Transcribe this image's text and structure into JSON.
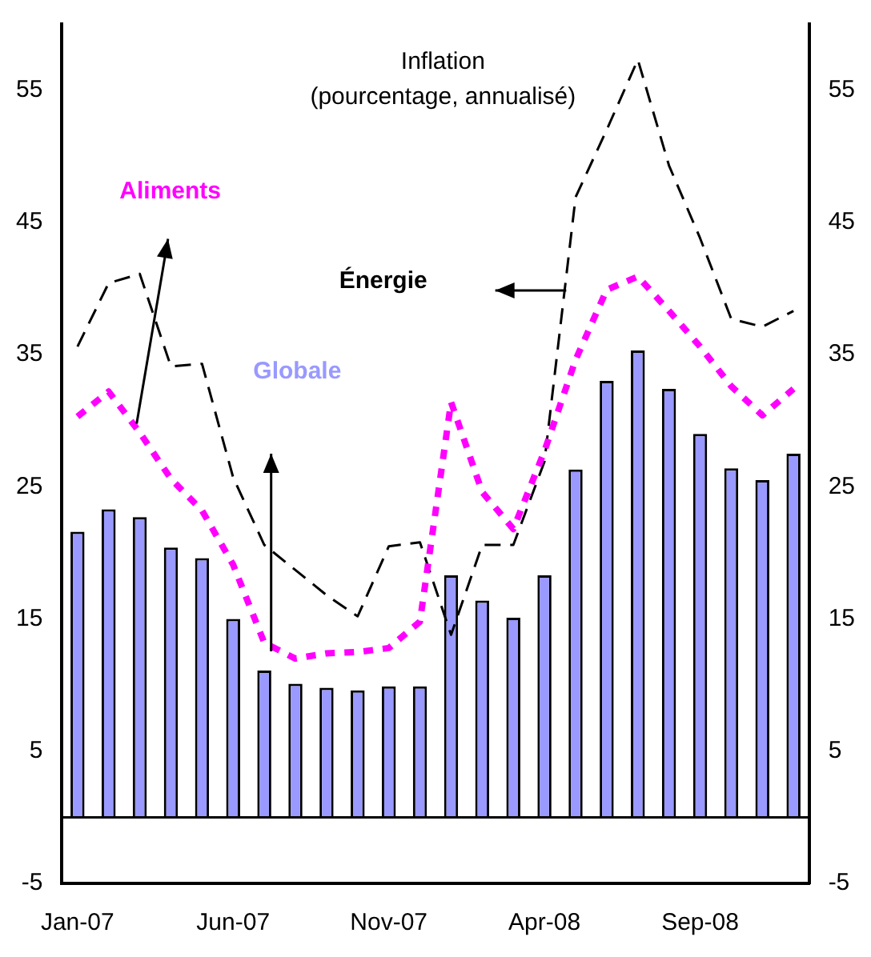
{
  "chart_data": {
    "type": "bar",
    "title": "Inflation",
    "subtitle": "(pourcentage, annualisé)",
    "categories": [
      "Jan-07",
      null,
      null,
      null,
      null,
      "Jun-07",
      null,
      null,
      null,
      null,
      "Nov-07",
      null,
      null,
      null,
      null,
      "Apr-08",
      null,
      null,
      null,
      null,
      "Sep-08",
      null,
      null,
      null
    ],
    "series": [
      {
        "name": "Globale",
        "color": "#9999ff",
        "values": [
          21.6,
          23.3,
          22.7,
          20.4,
          19.6,
          15.0,
          11.1,
          10.1,
          9.8,
          9.6,
          9.9,
          9.9,
          18.3,
          16.4,
          15.1,
          18.3,
          26.3,
          33.0,
          35.3,
          32.4,
          29.0,
          26.4,
          25.5,
          27.5
        ]
      },
      {
        "name": "Aliments",
        "type": "line",
        "color": "#ff00ff",
        "line_style": "dotted",
        "values": [
          30.3,
          32.2,
          29.1,
          25.6,
          23.2,
          19.1,
          13.2,
          12.0,
          12.4,
          12.5,
          12.8,
          14.8,
          31.4,
          24.6,
          21.8,
          27.7,
          34.6,
          39.9,
          40.9,
          38.3,
          35.6,
          32.6,
          30.4,
          32.4
        ]
      },
      {
        "name": "Énergie",
        "type": "line",
        "color": "#000000",
        "line_style": "dashed",
        "values": [
          35.6,
          40.4,
          41.1,
          34.1,
          34.3,
          25.7,
          20.6,
          18.7,
          16.8,
          15.2,
          20.5,
          20.8,
          13.8,
          20.6,
          20.6,
          26.9,
          46.9,
          52.0,
          57.3,
          49.3,
          43.8,
          37.7,
          37.1,
          38.3
        ]
      }
    ],
    "ylim": [
      -5,
      60
    ],
    "yticks": [
      -5,
      5,
      15,
      25,
      35,
      45,
      55
    ],
    "y2lim": [
      -5,
      60
    ],
    "y2ticks": [
      -5,
      5,
      15,
      25,
      35,
      45,
      55
    ],
    "ref_lines": [
      {
        "axis": "y",
        "value": 0,
        "color": "#000000"
      }
    ],
    "grid": false,
    "legend": false,
    "marker": "none"
  }
}
